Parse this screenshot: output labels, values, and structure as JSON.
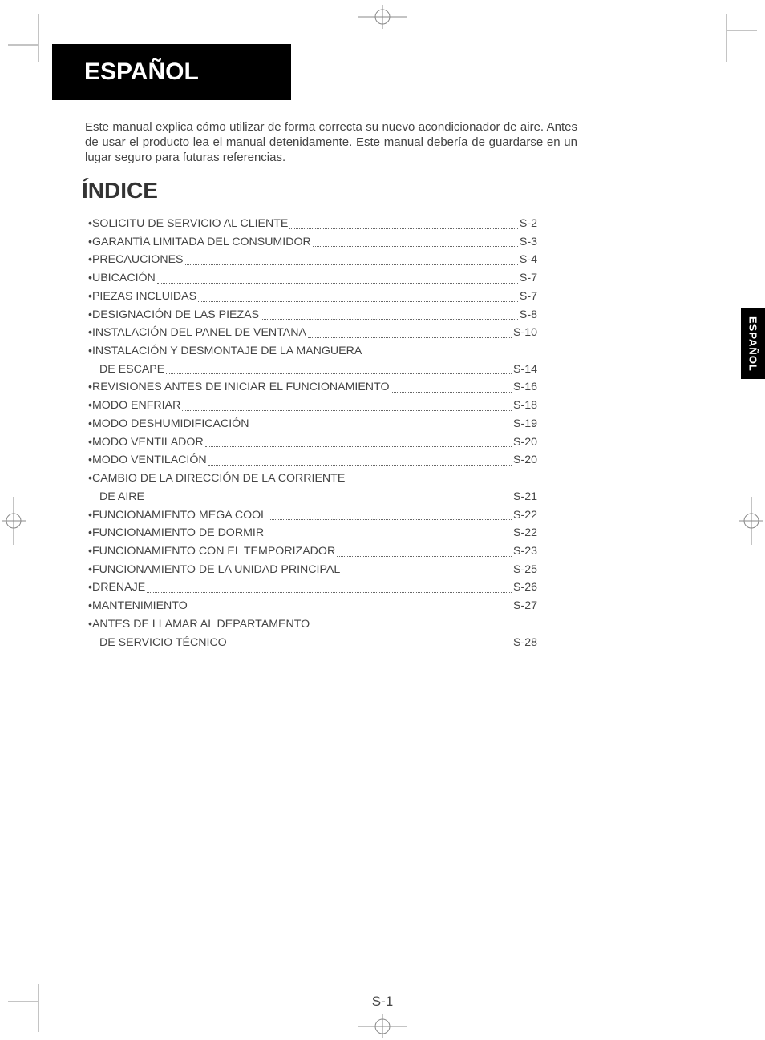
{
  "header": {
    "language_title": "ESPAÑOL"
  },
  "intro_text": "Este manual explica cómo utilizar de forma correcta su nuevo acondicionador de aire. Antes de usar el producto lea el manual detenidamente. Este manual debería de guardarse en un lugar seguro para futuras referencias.",
  "toc_title": "ÍNDICE",
  "side_tab": "ESPAÑOL",
  "page_number": "S-1",
  "toc": [
    {
      "label": "SOLICITU DE SERVICIO AL CLIENTE",
      "page": "S-2"
    },
    {
      "label": "GARANTÍA LIMITADA DEL CONSUMIDOR",
      "page": "S-3"
    },
    {
      "label": "PRECAUCIONES",
      "page": "S-4"
    },
    {
      "label": "UBICACIÓN",
      "page": "S-7"
    },
    {
      "label": "PIEZAS INCLUIDAS",
      "page": "S-7"
    },
    {
      "label": "DESIGNACIÓN DE LAS PIEZAS",
      "page": "S-8"
    },
    {
      "label": "INSTALACIÓN DEL PANEL DE VENTANA",
      "page": "S-10"
    },
    {
      "label": "INSTALACIÓN Y DESMONTAJE DE LA MANGUERA",
      "wrap": "DE ESCAPE",
      "page": "S-14"
    },
    {
      "label": "REVISIONES ANTES DE INICIAR EL FUNCIONAMIENTO",
      "page": "S-16"
    },
    {
      "label": "MODO ENFRIAR",
      "page": "S-18"
    },
    {
      "label": "MODO DESHUMIDIFICACIÓN",
      "page": "S-19"
    },
    {
      "label": "MODO VENTILADOR",
      "page": "S-20"
    },
    {
      "label": "MODO VENTILACIÓN",
      "page": "S-20"
    },
    {
      "label": "CAMBIO DE LA DIRECCIÓN DE LA CORRIENTE",
      "wrap": "DE AIRE",
      "page": "S-21"
    },
    {
      "label": "FUNCIONAMIENTO MEGA COOL",
      "page": "S-22"
    },
    {
      "label": "FUNCIONAMIENTO DE DORMIR",
      "page": "S-22"
    },
    {
      "label": "FUNCIONAMIENTO CON EL TEMPORIZADOR",
      "page": "S-23"
    },
    {
      "label": "FUNCIONAMIENTO DE LA UNIDAD PRINCIPAL",
      "page": "S-25"
    },
    {
      "label": "DRENAJE",
      "page": "S-26"
    },
    {
      "label": "MANTENIMIENTO",
      "page": "S-27"
    },
    {
      "label": "ANTES DE LLAMAR AL DEPARTAMENTO",
      "wrap": "DE SERVICIO TÉCNICO",
      "page": "S-28"
    }
  ],
  "colors": {
    "page_bg": "#ffffff",
    "text": "#444444",
    "header_bg": "#000000",
    "header_fg": "#ffffff",
    "crop_mark": "#999999"
  }
}
